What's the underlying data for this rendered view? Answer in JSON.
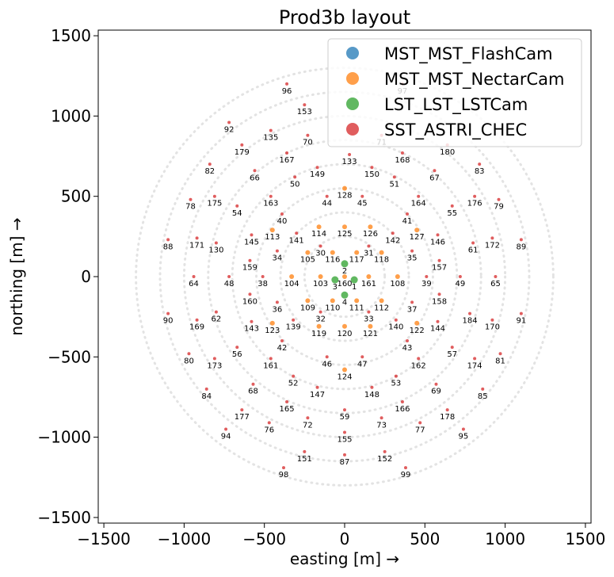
{
  "chart_data": {
    "type": "scatter",
    "title": "Prod3b layout",
    "xlabel": "easting [m] →",
    "ylabel": "northing [m] →",
    "xlim": [
      -1535,
      1535
    ],
    "ylim": [
      -1535,
      1535
    ],
    "xticks": [
      -1500,
      -1000,
      -500,
      0,
      500,
      1000,
      1500
    ],
    "yticks": [
      -1500,
      -1000,
      -500,
      0,
      500,
      1000,
      1500
    ],
    "xtick_labels": [
      "−1500",
      "−1000",
      "−500",
      "0",
      "500",
      "1000",
      "1500"
    ],
    "ytick_labels": [
      "−1500",
      "−1000",
      "−500",
      "0",
      "500",
      "1000",
      "1500"
    ],
    "grid": false,
    "legend_position": "top-right",
    "series": [
      {
        "name": "MST_MST_FlashCam",
        "color": "#1f77b4",
        "points": []
      },
      {
        "name": "MST_MST_NectarCam",
        "color": "#ff7f0e",
        "points": [
          {
            "id": "128",
            "x": 0,
            "y": 550
          },
          {
            "id": "113",
            "x": -450,
            "y": 290
          },
          {
            "id": "114",
            "x": -160,
            "y": 310
          },
          {
            "id": "125",
            "x": 0,
            "y": 310
          },
          {
            "id": "126",
            "x": 160,
            "y": 310
          },
          {
            "id": "127",
            "x": 450,
            "y": 290
          },
          {
            "id": "105",
            "x": -230,
            "y": 150
          },
          {
            "id": "116",
            "x": -75,
            "y": 150
          },
          {
            "id": "117",
            "x": 75,
            "y": 150
          },
          {
            "id": "118",
            "x": 230,
            "y": 150
          },
          {
            "id": "104",
            "x": -330,
            "y": 0
          },
          {
            "id": "103",
            "x": -150,
            "y": 0
          },
          {
            "id": "160",
            "x": 0,
            "y": 0
          },
          {
            "id": "161",
            "x": 150,
            "y": 0
          },
          {
            "id": "108",
            "x": 330,
            "y": 0
          },
          {
            "id": "109",
            "x": -230,
            "y": -150
          },
          {
            "id": "110",
            "x": -75,
            "y": -150
          },
          {
            "id": "111",
            "x": 75,
            "y": -150
          },
          {
            "id": "112",
            "x": 230,
            "y": -150
          },
          {
            "id": "123",
            "x": -450,
            "y": -290
          },
          {
            "id": "119",
            "x": -160,
            "y": -310
          },
          {
            "id": "120",
            "x": 0,
            "y": -310
          },
          {
            "id": "121",
            "x": 160,
            "y": -310
          },
          {
            "id": "122",
            "x": 450,
            "y": -290
          },
          {
            "id": "124",
            "x": 0,
            "y": -580
          }
        ]
      },
      {
        "name": "LST_LST_LSTCam",
        "color": "#2ca02c",
        "points": [
          {
            "id": "2",
            "x": 0,
            "y": 80
          },
          {
            "id": "3",
            "x": -60,
            "y": -20
          },
          {
            "id": "1",
            "x": 60,
            "y": -20
          },
          {
            "id": "4",
            "x": 0,
            "y": -115
          }
        ]
      },
      {
        "name": "SST_ASTRI_CHEC",
        "color": "#d62728",
        "points": [
          {
            "id": "96",
            "x": -360,
            "y": 1200
          },
          {
            "id": "97",
            "x": 360,
            "y": 1200
          },
          {
            "id": "153",
            "x": -250,
            "y": 1070
          },
          {
            "id": "92",
            "x": -720,
            "y": 960
          },
          {
            "id": "135",
            "x": -460,
            "y": 910
          },
          {
            "id": "70",
            "x": -230,
            "y": 880
          },
          {
            "id": "71",
            "x": 230,
            "y": 880
          },
          {
            "id": "179",
            "x": -640,
            "y": 820
          },
          {
            "id": "180",
            "x": 640,
            "y": 820
          },
          {
            "id": "167",
            "x": -360,
            "y": 770
          },
          {
            "id": "168",
            "x": 360,
            "y": 770
          },
          {
            "id": "82",
            "x": -840,
            "y": 700
          },
          {
            "id": "83",
            "x": 840,
            "y": 700
          },
          {
            "id": "66",
            "x": -560,
            "y": 660
          },
          {
            "id": "67",
            "x": 560,
            "y": 660
          },
          {
            "id": "149",
            "x": -170,
            "y": 680
          },
          {
            "id": "150",
            "x": 170,
            "y": 680
          },
          {
            "id": "50",
            "x": -310,
            "y": 620
          },
          {
            "id": "51",
            "x": 310,
            "y": 620
          },
          {
            "id": "133",
            "x": 30,
            "y": 760
          },
          {
            "id": "78",
            "x": -960,
            "y": 480
          },
          {
            "id": "79",
            "x": 960,
            "y": 480
          },
          {
            "id": "175",
            "x": -810,
            "y": 500
          },
          {
            "id": "176",
            "x": 810,
            "y": 500
          },
          {
            "id": "54",
            "x": -670,
            "y": 440
          },
          {
            "id": "55",
            "x": 670,
            "y": 440
          },
          {
            "id": "163",
            "x": -460,
            "y": 500
          },
          {
            "id": "164",
            "x": 460,
            "y": 500
          },
          {
            "id": "44",
            "x": -110,
            "y": 500
          },
          {
            "id": "45",
            "x": 110,
            "y": 500
          },
          {
            "id": "40",
            "x": -390,
            "y": 390
          },
          {
            "id": "41",
            "x": 390,
            "y": 390
          },
          {
            "id": "88",
            "x": -1100,
            "y": 230
          },
          {
            "id": "89",
            "x": 1100,
            "y": 230
          },
          {
            "id": "171",
            "x": -920,
            "y": 240
          },
          {
            "id": "172",
            "x": 920,
            "y": 240
          },
          {
            "id": "130",
            "x": -800,
            "y": 210
          },
          {
            "id": "61",
            "x": 800,
            "y": 210
          },
          {
            "id": "145",
            "x": -580,
            "y": 260
          },
          {
            "id": "146",
            "x": 580,
            "y": 260
          },
          {
            "id": "141",
            "x": -300,
            "y": 270
          },
          {
            "id": "142",
            "x": 300,
            "y": 270
          },
          {
            "id": "159",
            "x": -590,
            "y": 100
          },
          {
            "id": "157",
            "x": 590,
            "y": 100
          },
          {
            "id": "34",
            "x": -420,
            "y": 160
          },
          {
            "id": "35",
            "x": 420,
            "y": 160
          },
          {
            "id": "30",
            "x": -150,
            "y": 190
          },
          {
            "id": "31",
            "x": 150,
            "y": 190
          },
          {
            "id": "64",
            "x": -940,
            "y": 0
          },
          {
            "id": "65",
            "x": 940,
            "y": 0
          },
          {
            "id": "48",
            "x": -720,
            "y": 0
          },
          {
            "id": "49",
            "x": 720,
            "y": 0
          },
          {
            "id": "38",
            "x": -510,
            "y": 0
          },
          {
            "id": "39",
            "x": 510,
            "y": 0
          },
          {
            "id": "160",
            "x": -590,
            "y": -110
          },
          {
            "id": "158",
            "x": 590,
            "y": -110
          },
          {
            "id": "36",
            "x": -420,
            "y": -160
          },
          {
            "id": "37",
            "x": 420,
            "y": -160
          },
          {
            "id": "32",
            "x": -150,
            "y": -220
          },
          {
            "id": "33",
            "x": 150,
            "y": -220
          },
          {
            "id": "90",
            "x": -1100,
            "y": -230
          },
          {
            "id": "91",
            "x": 1100,
            "y": -230
          },
          {
            "id": "169",
            "x": -920,
            "y": -270
          },
          {
            "id": "170",
            "x": 920,
            "y": -270
          },
          {
            "id": "62",
            "x": -800,
            "y": -220
          },
          {
            "id": "184",
            "x": 780,
            "y": -230
          },
          {
            "id": "143",
            "x": -580,
            "y": -280
          },
          {
            "id": "144",
            "x": 580,
            "y": -280
          },
          {
            "id": "139",
            "x": -320,
            "y": -270
          },
          {
            "id": "140",
            "x": 320,
            "y": -270
          },
          {
            "id": "42",
            "x": -390,
            "y": -400
          },
          {
            "id": "43",
            "x": 390,
            "y": -400
          },
          {
            "id": "56",
            "x": -670,
            "y": -440
          },
          {
            "id": "57",
            "x": 670,
            "y": -440
          },
          {
            "id": "80",
            "x": -970,
            "y": -480
          },
          {
            "id": "81",
            "x": 970,
            "y": -480
          },
          {
            "id": "173",
            "x": -810,
            "y": -510
          },
          {
            "id": "174",
            "x": 810,
            "y": -510
          },
          {
            "id": "161",
            "x": -460,
            "y": -510
          },
          {
            "id": "162",
            "x": 460,
            "y": -510
          },
          {
            "id": "46",
            "x": -110,
            "y": -500
          },
          {
            "id": "47",
            "x": 110,
            "y": -500
          },
          {
            "id": "52",
            "x": -320,
            "y": -620
          },
          {
            "id": "53",
            "x": 320,
            "y": -620
          },
          {
            "id": "84",
            "x": -860,
            "y": -700
          },
          {
            "id": "85",
            "x": 860,
            "y": -700
          },
          {
            "id": "68",
            "x": -570,
            "y": -670
          },
          {
            "id": "69",
            "x": 570,
            "y": -670
          },
          {
            "id": "147",
            "x": -170,
            "y": -690
          },
          {
            "id": "148",
            "x": 170,
            "y": -690
          },
          {
            "id": "165",
            "x": -360,
            "y": -780
          },
          {
            "id": "166",
            "x": 360,
            "y": -780
          },
          {
            "id": "177",
            "x": -640,
            "y": -830
          },
          {
            "id": "178",
            "x": 640,
            "y": -830
          },
          {
            "id": "59",
            "x": 0,
            "y": -830
          },
          {
            "id": "72",
            "x": -230,
            "y": -880
          },
          {
            "id": "73",
            "x": 230,
            "y": -880
          },
          {
            "id": "76",
            "x": -470,
            "y": -910
          },
          {
            "id": "77",
            "x": 470,
            "y": -910
          },
          {
            "id": "94",
            "x": -740,
            "y": -950
          },
          {
            "id": "95",
            "x": 740,
            "y": -950
          },
          {
            "id": "155",
            "x": 0,
            "y": -970
          },
          {
            "id": "151",
            "x": -250,
            "y": -1090
          },
          {
            "id": "87",
            "x": 0,
            "y": -1110
          },
          {
            "id": "152",
            "x": 250,
            "y": -1090
          },
          {
            "id": "98",
            "x": -380,
            "y": -1190
          },
          {
            "id": "99",
            "x": 380,
            "y": -1190
          }
        ]
      }
    ]
  }
}
